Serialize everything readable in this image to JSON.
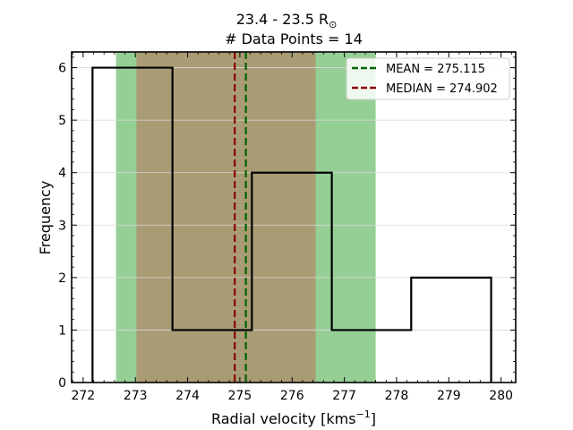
{
  "chart_data": {
    "type": "histogram",
    "title_line1": "23.4 - 23.5 R",
    "title_sub": "⊙",
    "title_line2": "# Data Points = 14",
    "xlabel_main": "Radial velocity [kms",
    "xlabel_sup": "−1",
    "xlabel_end": "]",
    "ylabel": "Frequency",
    "xlim": [
      271.78,
      280.28
    ],
    "ylim": [
      0,
      6.3
    ],
    "xticks": [
      272,
      273,
      274,
      275,
      276,
      277,
      278,
      279,
      280
    ],
    "yticks": [
      0,
      1,
      2,
      3,
      4,
      5,
      6
    ],
    "grid": "horizontal",
    "bin_edges": [
      272.18,
      273.71,
      275.23,
      276.76,
      278.28,
      279.81
    ],
    "counts": [
      6,
      1,
      4,
      1,
      2
    ],
    "mean": 275.115,
    "median": 274.902,
    "mean_band": [
      272.63,
      277.6
    ],
    "median_band": [
      273.02,
      276.45
    ],
    "legend": [
      {
        "label": "MEAN = 275.115",
        "color": "#006400"
      },
      {
        "label": "MEDIAN = 274.902",
        "color": "#8b0000"
      }
    ],
    "legend_position": "upper right",
    "colors": {
      "mean_band": "#2ca02c",
      "median_band": "#d62728",
      "histogram": "#000000",
      "grid": "#d9d9d9"
    }
  }
}
